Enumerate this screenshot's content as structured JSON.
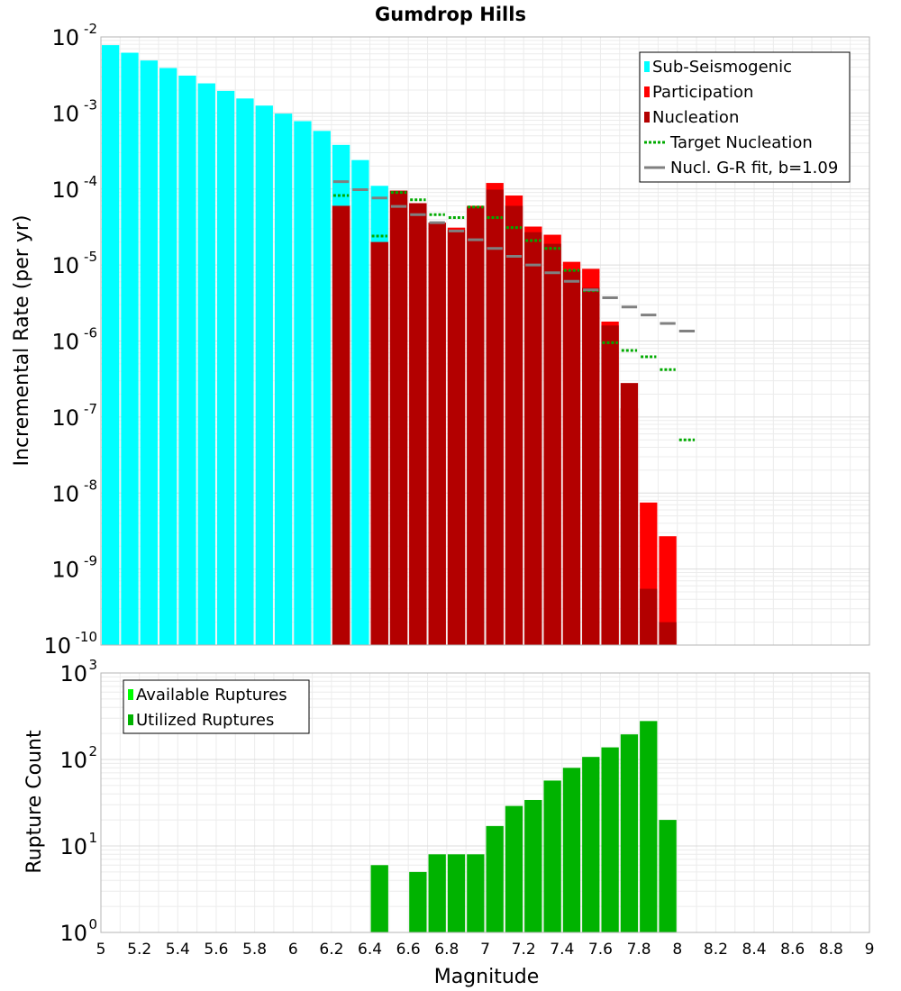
{
  "chart_data": [
    {
      "type": "bar",
      "title": "Gumdrop Hills",
      "xlabel": "",
      "ylabel": "Incremental Rate (per yr)",
      "yscale": "log",
      "ylim_exponents": [
        -10,
        -2
      ],
      "xlim": [
        5,
        9
      ],
      "grid": true,
      "legend_position": "top-right",
      "bin_width": 0.1,
      "series": [
        {
          "name": "Sub-Seismogenic",
          "kind": "bar",
          "color": "#00ffff",
          "x": [
            5.05,
            5.15,
            5.25,
            5.35,
            5.45,
            5.55,
            5.65,
            5.75,
            5.85,
            5.95,
            6.05,
            6.15,
            6.25,
            6.35,
            6.45
          ],
          "values": [
            0.0078,
            0.0062,
            0.0049,
            0.0039,
            0.0031,
            0.00245,
            0.00195,
            0.00155,
            0.00125,
            0.00098,
            0.00078,
            0.00058,
            0.00038,
            0.00024,
            0.00011
          ]
        },
        {
          "name": "Participation",
          "kind": "bar",
          "color": "#ff0000",
          "x": [
            6.25,
            6.45,
            6.55,
            6.65,
            6.75,
            6.85,
            6.95,
            7.05,
            7.15,
            7.25,
            7.35,
            7.45,
            7.55,
            7.65,
            7.75,
            7.85,
            7.95
          ],
          "values": [
            6e-05,
            2e-05,
            9.5e-05,
            6.5e-05,
            3.6e-05,
            3.1e-05,
            6e-05,
            0.00012,
            8.2e-05,
            3.2e-05,
            2.5e-05,
            1.1e-05,
            8.9e-06,
            1.8e-06,
            1.3e-07,
            7.5e-09,
            2.7e-09
          ]
        },
        {
          "name": "Nucleation",
          "kind": "bar",
          "color": "#b30000",
          "x": [
            6.25,
            6.45,
            6.55,
            6.65,
            6.75,
            6.85,
            6.95,
            7.05,
            7.15,
            7.25,
            7.35,
            7.45,
            7.55,
            7.65,
            7.75,
            7.85,
            7.95
          ],
          "values": [
            6e-05,
            2e-05,
            9.5e-05,
            6.5e-05,
            3.6e-05,
            2.9e-05,
            5.8e-05,
            9.8e-05,
            6e-05,
            2.7e-05,
            1.9e-05,
            8.5e-06,
            5e-06,
            1.6e-06,
            2.8e-07,
            5.5e-10,
            2e-10
          ]
        },
        {
          "name": "Target Nucleation",
          "kind": "dotted-step",
          "color": "#00aa00",
          "x": [
            6.25,
            6.45,
            6.55,
            6.65,
            6.75,
            6.85,
            6.95,
            7.05,
            7.15,
            7.25,
            7.35,
            7.45,
            7.55,
            7.65,
            7.75,
            7.85,
            7.95,
            8.05
          ],
          "values": [
            8.2e-05,
            2.4e-05,
            9e-05,
            7.2e-05,
            4.6e-05,
            4.2e-05,
            5.8e-05,
            4.2e-05,
            3.1e-05,
            2.1e-05,
            1.65e-05,
            8.5e-06,
            4.6e-06,
            9.5e-07,
            7.5e-07,
            6.2e-07,
            4.2e-07,
            5e-08
          ]
        },
        {
          "name": "Nucl. G-R fit, b=1.09",
          "kind": "step",
          "color": "#808080",
          "x": [
            6.25,
            6.35,
            6.45,
            6.55,
            6.65,
            6.75,
            6.85,
            6.95,
            7.05,
            7.15,
            7.25,
            7.35,
            7.45,
            7.55,
            7.65,
            7.75,
            7.85,
            7.95,
            8.05
          ],
          "values": [
            0.000125,
            9.8e-05,
            7.6e-05,
            5.9e-05,
            4.6e-05,
            3.6e-05,
            2.8e-05,
            2.15e-05,
            1.65e-05,
            1.3e-05,
            1e-05,
            7.9e-06,
            6.1e-06,
            4.7e-06,
            3.7e-06,
            2.8e-06,
            2.2e-06,
            1.7e-06,
            1.35e-06
          ]
        }
      ]
    },
    {
      "type": "bar",
      "title": "",
      "xlabel": "Magnitude",
      "ylabel": "Rupture Count",
      "yscale": "log",
      "ylim_exponents": [
        0,
        3
      ],
      "xlim": [
        5,
        9
      ],
      "grid": true,
      "legend_position": "top-left",
      "x_ticks": [
        "5",
        "5.2",
        "5.4",
        "5.6",
        "5.8",
        "6",
        "6.2",
        "6.4",
        "6.6",
        "6.8",
        "7",
        "7.2",
        "7.4",
        "7.6",
        "7.8",
        "8",
        "8.2",
        "8.4",
        "8.6",
        "8.8",
        "9"
      ],
      "series": [
        {
          "name": "Available Ruptures",
          "kind": "bar",
          "color": "#00ff00",
          "x": [],
          "values": []
        },
        {
          "name": "Utilized Ruptures",
          "kind": "bar",
          "color": "#00b300",
          "x": [
            6.45,
            6.65,
            6.75,
            6.85,
            6.95,
            7.05,
            7.15,
            7.25,
            7.35,
            7.45,
            7.55,
            7.65,
            7.75,
            7.85,
            7.95
          ],
          "values": [
            6,
            5,
            8,
            8,
            8,
            17,
            29,
            34,
            57,
            80,
            107,
            138,
            195,
            278,
            20
          ]
        }
      ]
    }
  ]
}
